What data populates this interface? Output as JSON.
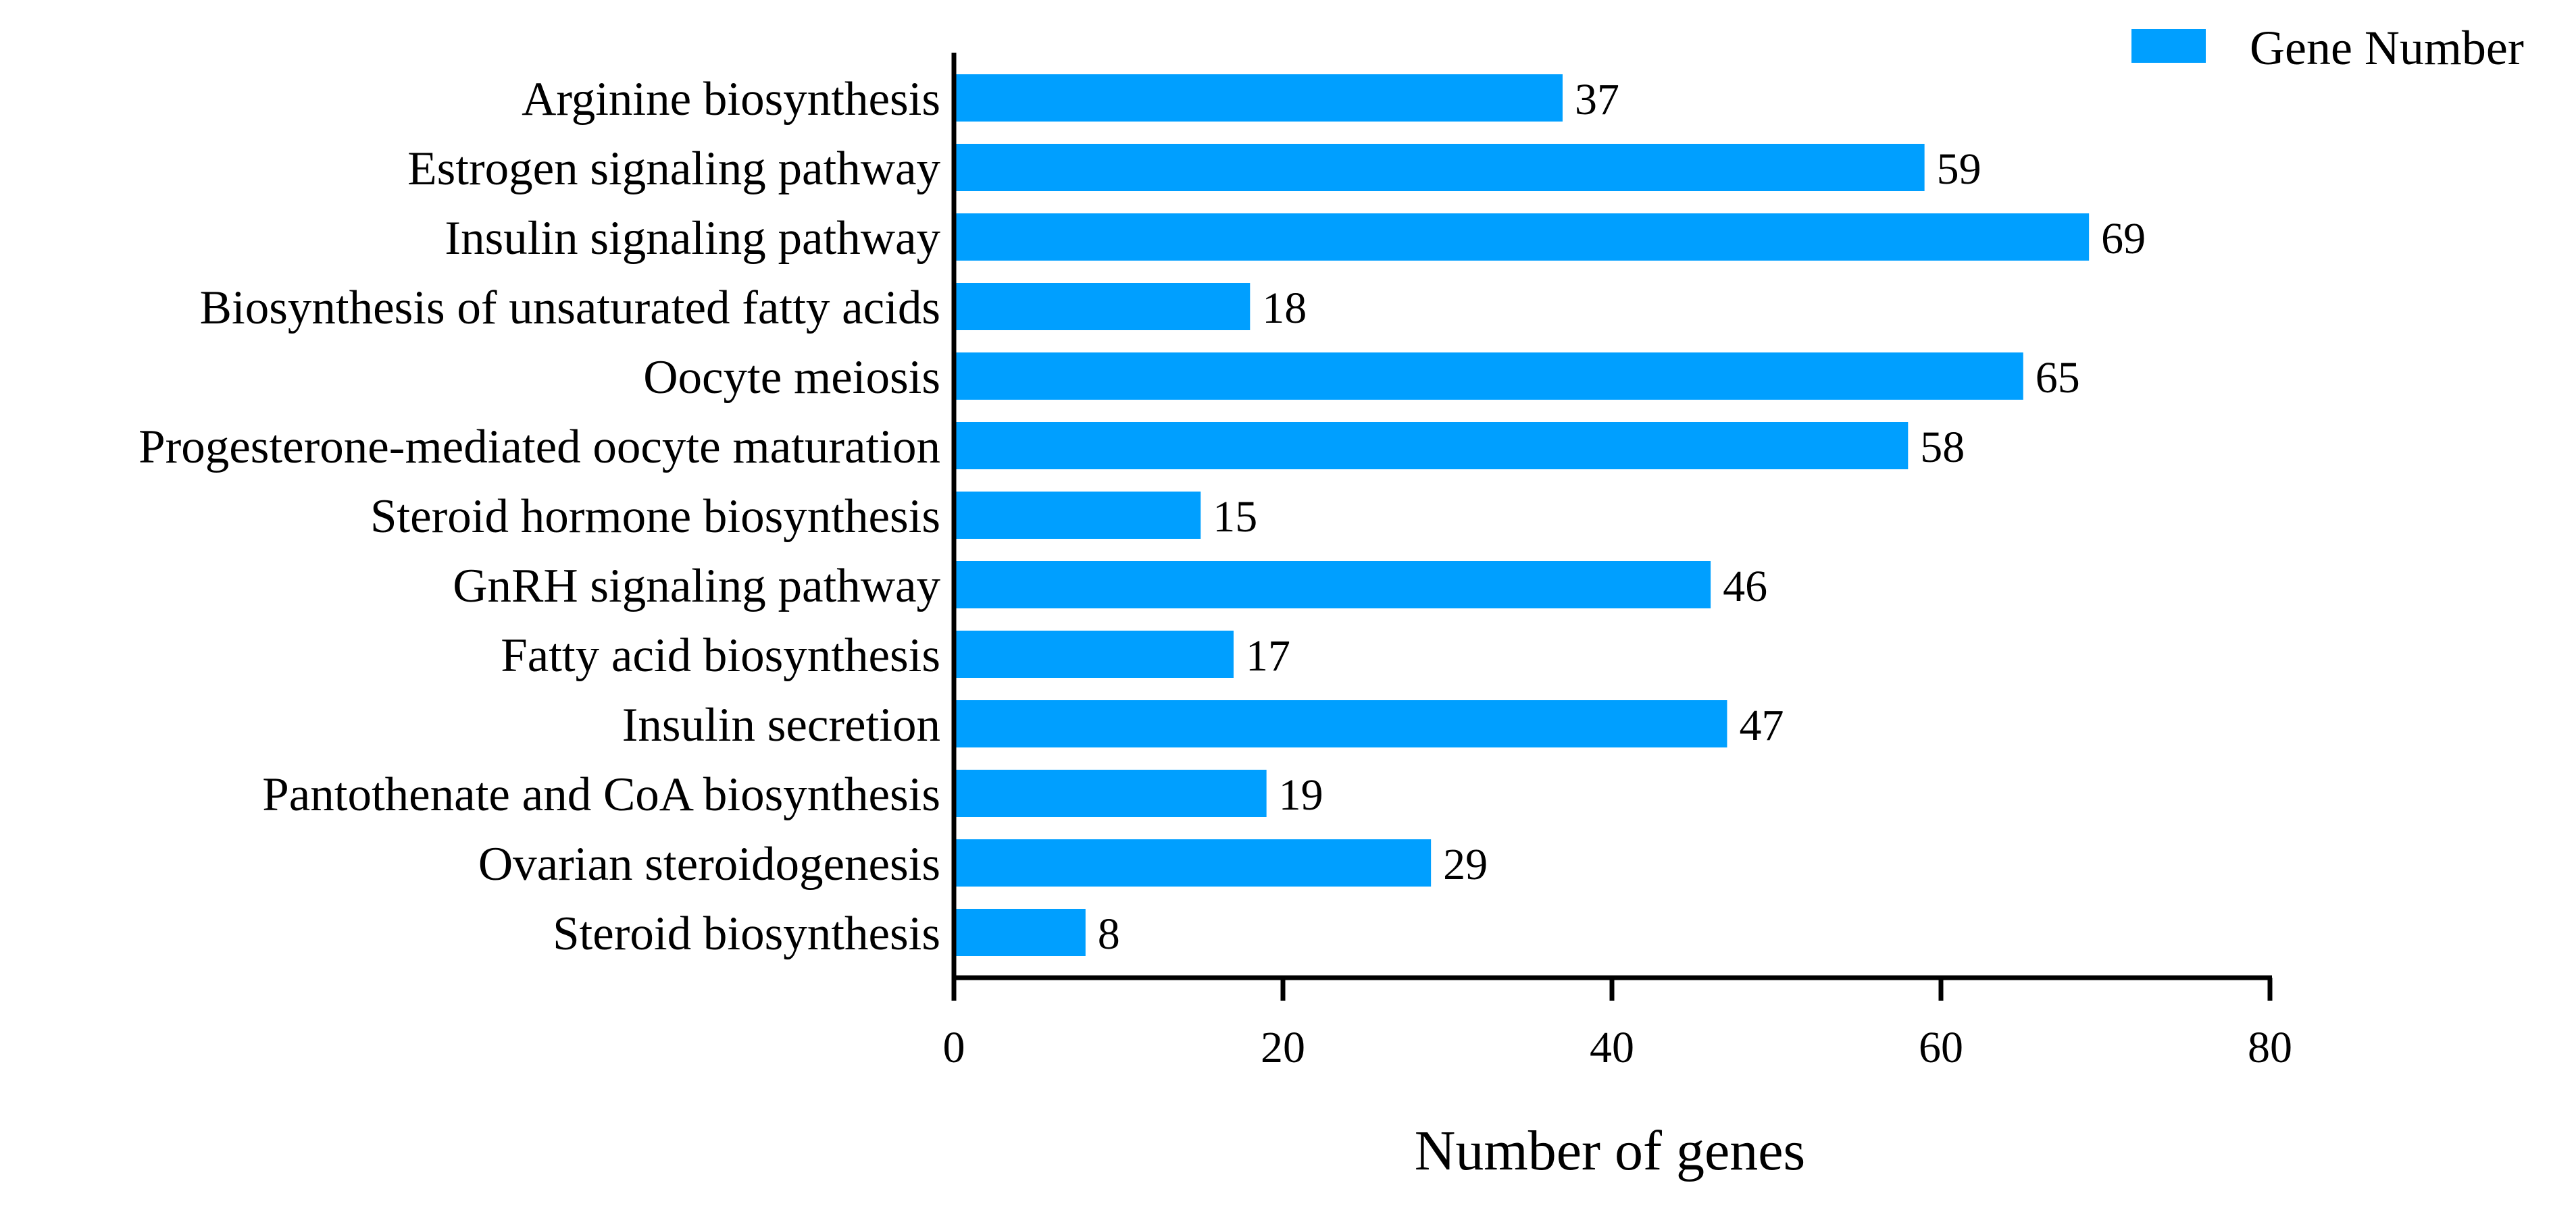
{
  "chart_data": {
    "type": "bar",
    "orientation": "horizontal",
    "categories": [
      "Arginine biosynthesis",
      "Estrogen signaling pathway",
      "Insulin signaling pathway",
      "Biosynthesis of unsaturated fatty acids",
      "Oocyte meiosis",
      "Progesterone-mediated oocyte maturation",
      "Steroid hormone biosynthesis",
      "GnRH signaling pathway",
      "Fatty acid biosynthesis",
      "Insulin secretion",
      "Pantothenate and CoA biosynthesis",
      "Ovarian steroidogenesis",
      "Steroid biosynthesis"
    ],
    "series": [
      {
        "name": "Gene Number",
        "values": [
          37,
          59,
          69,
          18,
          65,
          58,
          15,
          46,
          17,
          47,
          19,
          29,
          8
        ]
      }
    ],
    "title": "",
    "xlabel": "Number of genes",
    "ylabel": "",
    "xlim": [
      0,
      80
    ],
    "xticks": [
      0,
      20,
      40,
      60,
      80
    ],
    "tick_labels": [
      "0",
      "20",
      "40",
      "60",
      "80"
    ],
    "grid": false,
    "legend_position": "top-right",
    "bar_color": "#009FFF"
  }
}
